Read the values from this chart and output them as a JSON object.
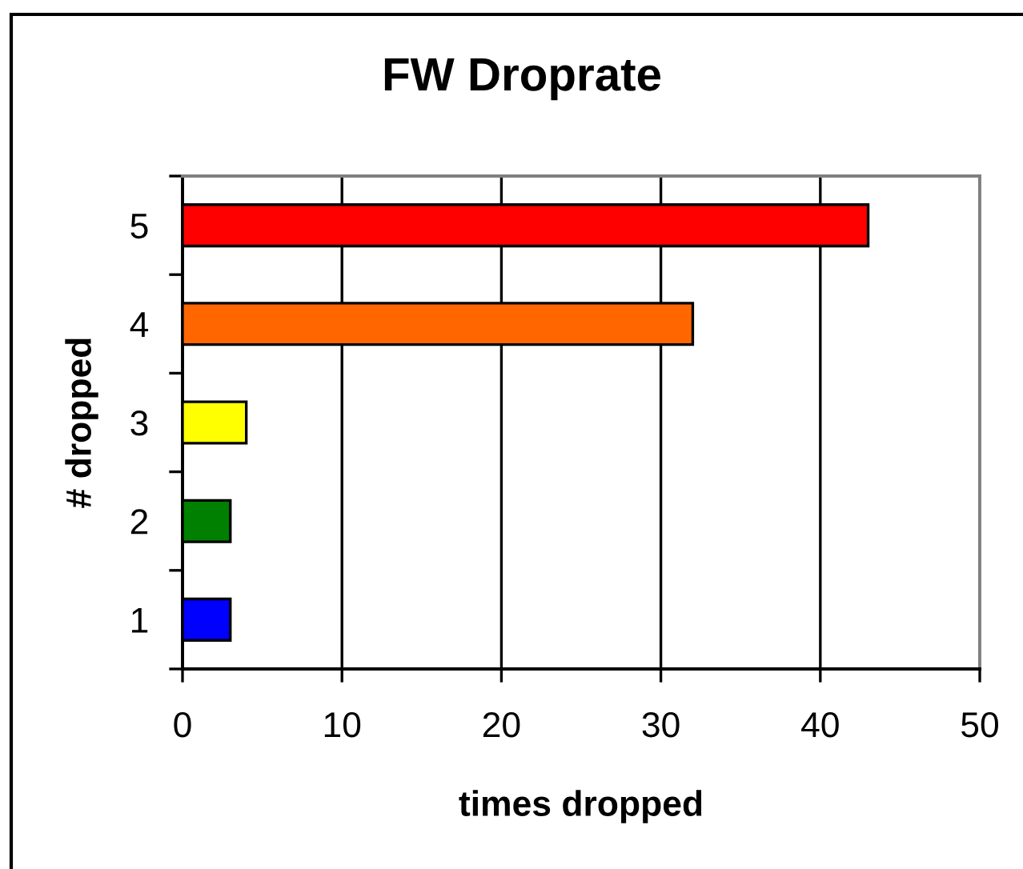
{
  "chart_data": {
    "type": "bar",
    "orientation": "horizontal",
    "title": "FW Droprate",
    "xlabel": "times dropped",
    "ylabel": "# dropped",
    "categories": [
      "5",
      "4",
      "3",
      "2",
      "1"
    ],
    "values": [
      43,
      32,
      4,
      3,
      3
    ],
    "colors": [
      "#ff0000",
      "#ff6600",
      "#ffff00",
      "#008000",
      "#0000ff"
    ],
    "xlim": [
      0,
      50
    ],
    "xticks": [
      0,
      10,
      20,
      30,
      40,
      50
    ],
    "grid": "x",
    "legend": false
  }
}
